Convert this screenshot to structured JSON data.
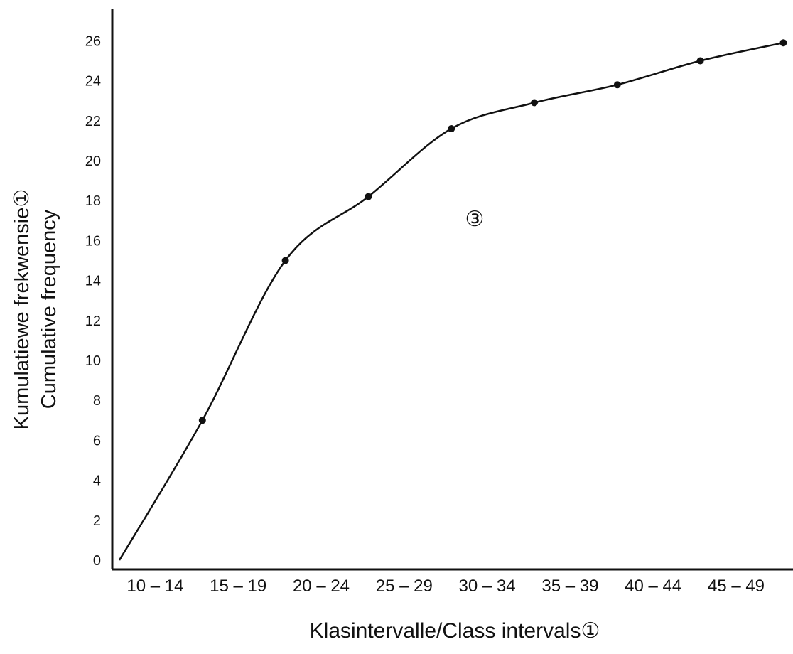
{
  "chart_data": {
    "type": "line",
    "title": "",
    "xlabel": "Klasintervalle/Class intervals①",
    "ylabel_lines": [
      "Kumulatiewe frekwensie①",
      "Cumulative frequency"
    ],
    "annotation": "③",
    "categories": [
      "10 – 14",
      "15 – 19",
      "20 – 24",
      "25 – 29",
      "30 – 34",
      "35 – 39",
      "40 – 44",
      "45 – 49"
    ],
    "yticks": [
      "0",
      "2",
      "4",
      "6",
      "8",
      "10",
      "12",
      "14",
      "16",
      "18",
      "20",
      "22",
      "24",
      "26"
    ],
    "ylim": [
      0,
      27
    ],
    "x_upper_bounds": [
      9.5,
      14.5,
      19.5,
      24.5,
      29.5,
      34.5,
      39.5,
      44.5,
      49.5
    ],
    "points": [
      {
        "x": 14.5,
        "y": 7
      },
      {
        "x": 19.5,
        "y": 15
      },
      {
        "x": 24.5,
        "y": 18.2
      },
      {
        "x": 29.5,
        "y": 21.6
      },
      {
        "x": 34.5,
        "y": 22.9
      },
      {
        "x": 39.5,
        "y": 23.8
      },
      {
        "x": 44.5,
        "y": 25
      },
      {
        "x": 49.5,
        "y": 25.9
      }
    ],
    "origin": {
      "x": 9.5,
      "y": 0
    },
    "grid": false,
    "legend": "none",
    "line_color": "#111111"
  }
}
